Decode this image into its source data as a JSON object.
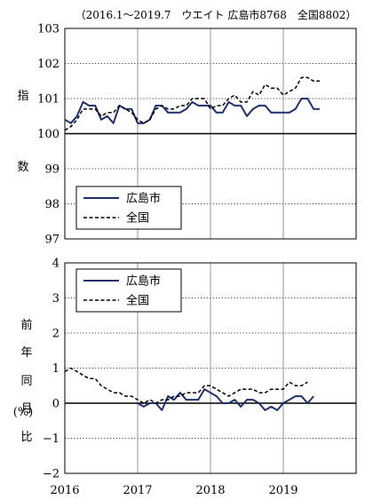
{
  "subtitle": "（2016.1～2019.7　ウエイト 広島市8768　全国8802）",
  "colors": {
    "hiroshima": "#1f2f6b",
    "national": "#000000"
  },
  "x_tick_labels": [
    "2016",
    "2017",
    "2018",
    "2019"
  ],
  "chart_data": [
    {
      "type": "line",
      "ylabel_chars": [
        "指",
        "数"
      ],
      "ylim": [
        97,
        103
      ],
      "y_ticks": [
        "97",
        "98",
        "99",
        "100",
        "101",
        "102",
        "103"
      ],
      "grid": true,
      "legend_placement": "lower-left",
      "x_start": "2016.1",
      "series": [
        {
          "name": "広島市",
          "style": "solid",
          "values": [
            100.4,
            100.3,
            100.5,
            100.9,
            100.8,
            100.8,
            100.4,
            100.5,
            100.3,
            100.8,
            100.7,
            100.7,
            100.3,
            100.3,
            100.4,
            100.8,
            100.8,
            100.6,
            100.6,
            100.6,
            100.7,
            100.9,
            100.8,
            100.8,
            100.8,
            100.6,
            100.6,
            100.9,
            100.8,
            100.8,
            100.5,
            100.7,
            100.8,
            100.8,
            100.6,
            100.6,
            100.6,
            100.6,
            100.7,
            101.0,
            101.0,
            100.7,
            100.7
          ]
        },
        {
          "name": "全国",
          "style": "dashed",
          "values": [
            100.1,
            100.2,
            100.4,
            100.7,
            100.7,
            100.7,
            100.5,
            100.6,
            100.6,
            100.8,
            100.7,
            100.6,
            100.4,
            100.3,
            100.4,
            100.7,
            100.8,
            100.7,
            100.7,
            100.8,
            100.8,
            101.0,
            101.0,
            101.0,
            100.7,
            100.8,
            100.8,
            101.0,
            101.1,
            100.9,
            100.9,
            101.2,
            101.1,
            101.4,
            101.3,
            101.3,
            101.1,
            101.2,
            101.3,
            101.6,
            101.6,
            101.5,
            101.5
          ]
        }
      ]
    },
    {
      "type": "line",
      "ylabel_chars": [
        "前",
        "年",
        "同",
        "月",
        "比"
      ],
      "ylabel_unit": "(%)",
      "ylim": [
        -2,
        4
      ],
      "y_ticks": [
        "−2",
        "−1",
        "0",
        "1",
        "2",
        "3",
        "4"
      ],
      "grid": true,
      "legend_placement": "top-left",
      "x_start": "2016.1",
      "series": [
        {
          "name": "広島市",
          "style": "solid",
          "values": [
            null,
            null,
            null,
            null,
            null,
            null,
            null,
            null,
            null,
            null,
            null,
            null,
            0.0,
            -0.1,
            0.0,
            0.0,
            -0.2,
            0.2,
            0.1,
            0.3,
            0.1,
            0.1,
            0.1,
            0.4,
            0.3,
            0.2,
            0.0,
            0.0,
            0.1,
            -0.1,
            0.1,
            0.1,
            0.0,
            -0.2,
            -0.1,
            -0.2,
            0.0,
            0.1,
            0.2,
            0.2,
            0.0,
            0.2,
            null
          ]
        },
        {
          "name": "全国",
          "style": "dashed",
          "values": [
            0.9,
            1.0,
            0.9,
            0.8,
            0.7,
            0.7,
            0.5,
            0.4,
            0.3,
            0.3,
            0.2,
            0.2,
            0.1,
            0.0,
            0.1,
            0.0,
            0.1,
            0.1,
            0.2,
            0.2,
            0.3,
            0.3,
            0.3,
            0.5,
            0.5,
            0.4,
            0.3,
            0.2,
            0.3,
            0.4,
            0.4,
            0.4,
            0.3,
            0.3,
            0.4,
            0.4,
            0.4,
            0.6,
            0.5,
            0.5,
            0.6,
            null,
            null
          ]
        }
      ]
    }
  ]
}
